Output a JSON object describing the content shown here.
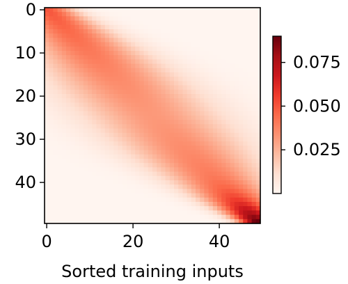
{
  "chart_data": {
    "type": "heatmap",
    "title": "",
    "xlabel": "Sorted training inputs",
    "ylabel": "",
    "rows": 50,
    "cols": 50,
    "xlim": [
      0,
      50
    ],
    "ylim": [
      50,
      0
    ],
    "xticks": [
      0,
      20,
      40
    ],
    "xtick_labels": [
      "0",
      "20",
      "40"
    ],
    "yticks": [
      0,
      10,
      20,
      30,
      40
    ],
    "ytick_labels": [
      "0",
      "10",
      "20",
      "30",
      "40"
    ],
    "colormap": "Reds",
    "colorbar": {
      "min": 0.0,
      "max": 0.09,
      "ticks": [
        0.025,
        0.05,
        0.075
      ],
      "tick_labels": [
        "0.025",
        "0.050",
        "0.075"
      ]
    },
    "pattern": {
      "description": "band along the diagonal, widest in the middle rows, peak at the bottom-right corner",
      "values_along_diagonal": [
        {
          "row": 0,
          "value": 0.05
        },
        {
          "row": 10,
          "value": 0.035
        },
        {
          "row": 20,
          "value": 0.03
        },
        {
          "row": 30,
          "value": 0.035
        },
        {
          "row": 40,
          "value": 0.05
        },
        {
          "row": 49,
          "value": 0.09
        }
      ]
    },
    "grid": false,
    "legend": "none"
  }
}
